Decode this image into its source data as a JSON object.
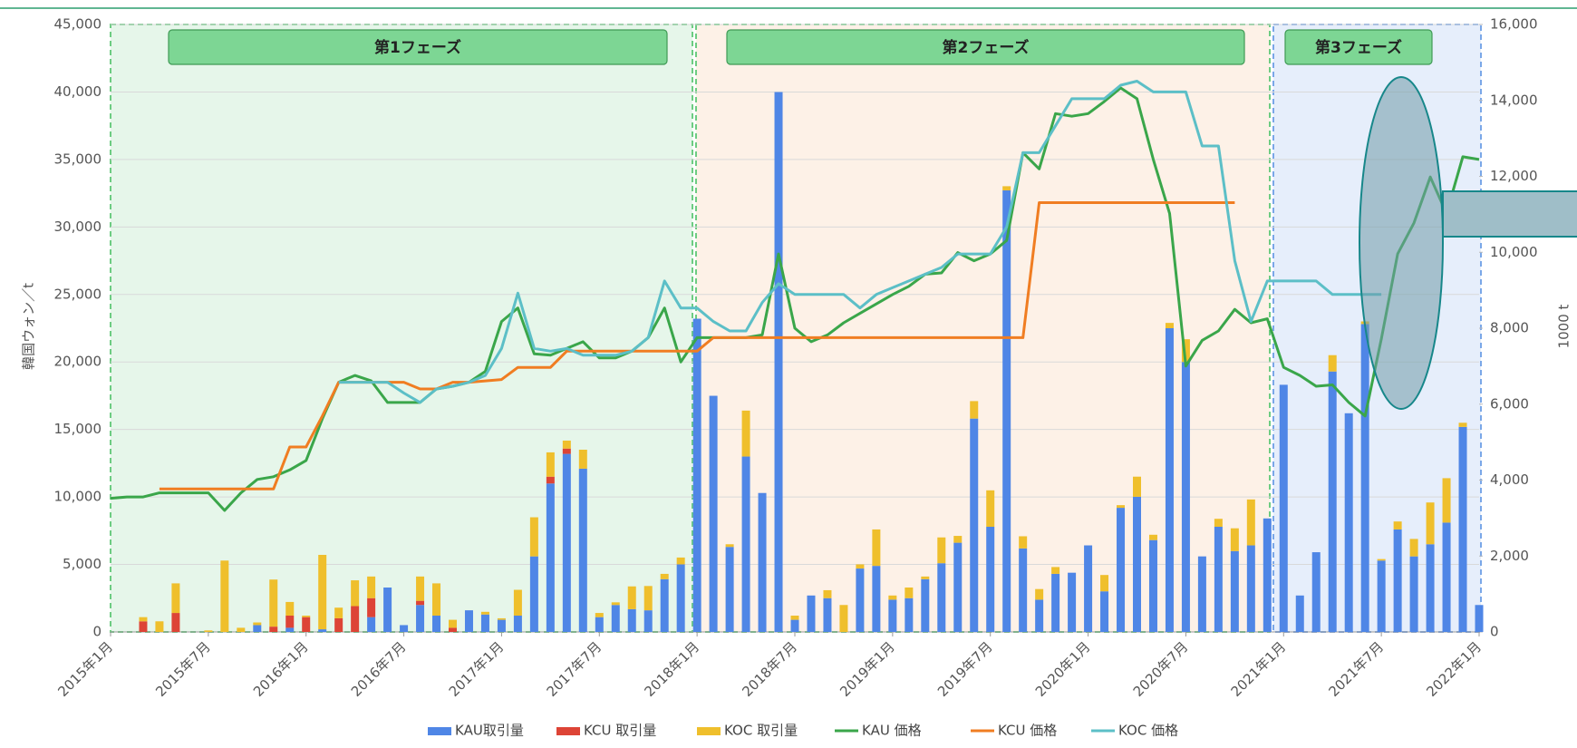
{
  "chart_data": {
    "type": "bar",
    "ylabel": "韓国ウォン／t",
    "y2label": "1000 t",
    "phases": [
      "第1フェーズ",
      "第2フェーズ",
      "第3フェーズ"
    ],
    "categories": [
      "2015年1月",
      null,
      null,
      null,
      null,
      null,
      "2015年7月",
      null,
      null,
      null,
      null,
      null,
      "2016年1月",
      null,
      null,
      null,
      null,
      null,
      "2016年7月",
      null,
      null,
      null,
      null,
      null,
      "2017年1月",
      null,
      null,
      null,
      null,
      null,
      "2017年7月",
      null,
      null,
      null,
      null,
      null,
      "2018年1月",
      null,
      null,
      null,
      null,
      null,
      "2018年7月",
      null,
      null,
      null,
      null,
      null,
      "2019年1月",
      null,
      null,
      null,
      null,
      null,
      "2019年7月",
      null,
      null,
      null,
      null,
      null,
      "2020年1月",
      null,
      null,
      null,
      null,
      null,
      "2020年7月",
      null,
      null,
      null,
      null,
      null,
      "2021年1月",
      null,
      null,
      null,
      null,
      null,
      "2021年7月",
      null,
      null,
      null,
      null,
      null,
      "2022年1月"
    ],
    "ylim": [
      0,
      45000
    ],
    "yticks": [
      0,
      {
        "value": 5000,
        "label": "5,000"
      },
      {
        "value": 10000,
        "label": "10,000"
      },
      {
        "value": 15000,
        "label": "15,000"
      },
      {
        "value": 20000,
        "label": "20,000"
      },
      {
        "value": 25000,
        "label": "25,000"
      },
      {
        "value": 30000,
        "label": "30,000"
      },
      {
        "value": 35000,
        "label": "35,000"
      },
      {
        "value": 40000,
        "label": "40,000"
      },
      {
        "value": 45000,
        "label": "45,000"
      }
    ],
    "y2lim": [
      0,
      16000
    ],
    "y2ticks": [
      0,
      {
        "value": 2000,
        "label": "2,000"
      },
      {
        "value": 4000,
        "label": "4,000"
      },
      {
        "value": 6000,
        "label": "6,000"
      },
      {
        "value": 8000,
        "label": "8,000"
      },
      {
        "value": 10000,
        "label": "10,000"
      },
      {
        "value": 12000,
        "label": "12,000"
      },
      {
        "value": 14000,
        "label": "14,000"
      },
      {
        "value": 16000,
        "label": "16,000"
      }
    ],
    "grid": true,
    "legend": "bottom",
    "series": [
      {
        "name": "KAU取引量",
        "type": "bar",
        "axis": "y2",
        "color": "#4f86e6",
        "values": [
          0,
          0,
          0,
          0,
          0,
          0,
          0,
          0,
          0,
          180,
          0,
          110,
          0,
          70,
          0,
          0,
          390,
          1170,
          180,
          710,
          430,
          0,
          570,
          460,
          320,
          430,
          1990,
          3910,
          4690,
          4300,
          390,
          710,
          600,
          570,
          1390,
          1780,
          8250,
          6220,
          2240,
          4620,
          3660,
          14220,
          320,
          960,
          890,
          0,
          1670,
          1740,
          850,
          890,
          1390,
          1810,
          2350,
          5620,
          2770,
          11630,
          2200,
          850,
          1530,
          1560,
          2280,
          1070,
          3270,
          3560,
          2420,
          8000,
          7110,
          1990,
          2770,
          2130,
          2280,
          2990,
          6510,
          960,
          2100,
          6860,
          5760,
          8110,
          1880,
          2700,
          1990,
          2310,
          2880,
          5400,
          710
        ]
      },
      {
        "name": "KCU 取引量",
        "type": "bar",
        "axis": "y2",
        "color": "#dd4436",
        "values": [
          0,
          0,
          280,
          0,
          500,
          0,
          0,
          0,
          0,
          0,
          140,
          320,
          390,
          0,
          360,
          680,
          500,
          0,
          0,
          110,
          0,
          110,
          0,
          0,
          0,
          0,
          0,
          180,
          140,
          0,
          0,
          0,
          0,
          0,
          0,
          0,
          0,
          0,
          0,
          0,
          0,
          0,
          0,
          0,
          0,
          0,
          0,
          0,
          0,
          0,
          0,
          0,
          0,
          0,
          0,
          0,
          0,
          0,
          0,
          0,
          0,
          0,
          0,
          0,
          0,
          0,
          0,
          0,
          0,
          0,
          0,
          0,
          0,
          0,
          0,
          0,
          0,
          0,
          0,
          0,
          0,
          0,
          0,
          0,
          0
        ]
      },
      {
        "name": "KOC 取引量",
        "type": "bar",
        "axis": "y2",
        "color": "#efbf2c",
        "values": [
          0,
          0,
          110,
          280,
          780,
          0,
          40,
          1880,
          110,
          70,
          1240,
          360,
          40,
          1960,
          280,
          680,
          570,
          0,
          0,
          640,
          850,
          210,
          0,
          70,
          40,
          680,
          1030,
          640,
          210,
          500,
          110,
          70,
          600,
          640,
          140,
          180,
          0,
          0,
          70,
          1210,
          0,
          0,
          110,
          0,
          210,
          710,
          110,
          960,
          110,
          280,
          70,
          680,
          180,
          460,
          960,
          110,
          320,
          280,
          180,
          0,
          0,
          430,
          70,
          530,
          140,
          140,
          600,
          0,
          210,
          600,
          1210,
          0,
          0,
          0,
          0,
          430,
          0,
          70,
          40,
          210,
          460,
          1100,
          1170,
          110,
          0
        ]
      },
      {
        "name": "KAU 価格",
        "type": "line",
        "color": "#3aa64a",
        "values": [
          9900,
          10000,
          10000,
          10300,
          10300,
          10300,
          10300,
          9000,
          10300,
          11300,
          11500,
          12000,
          12700,
          15800,
          18500,
          19000,
          18600,
          17000,
          17000,
          17000,
          18000,
          18200,
          18500,
          19300,
          23000,
          24000,
          20600,
          20500,
          21000,
          21500,
          20300,
          20300,
          20800,
          21800,
          24000,
          20000,
          21800,
          21800,
          21800,
          21800,
          22000,
          28000,
          22500,
          21500,
          22000,
          22900,
          23600,
          24300,
          25000,
          25600,
          26500,
          26600,
          28100,
          27500,
          28000,
          29000,
          35500,
          34300,
          38400,
          38200,
          38400,
          39300,
          40300,
          39500,
          35000,
          31000,
          19700,
          21600,
          22300,
          23900,
          22900,
          23200,
          19600,
          19000,
          18200,
          18300,
          17000,
          16000,
          21700,
          28000,
          30300,
          33700,
          31000,
          35200,
          35000
        ]
      },
      {
        "name": "KCU 価格",
        "type": "line",
        "color": "#f07d22",
        "values": [
          null,
          null,
          null,
          10600,
          10600,
          10600,
          10600,
          10600,
          10600,
          10600,
          10600,
          13700,
          13700,
          16000,
          18500,
          18500,
          18500,
          18500,
          18500,
          18000,
          18000,
          18500,
          18500,
          18600,
          18700,
          19600,
          19600,
          19600,
          20800,
          20800,
          20800,
          20800,
          20800,
          20800,
          20800,
          20800,
          20800,
          21800,
          21800,
          21800,
          21800,
          21800,
          21800,
          21800,
          21800,
          21800,
          21800,
          21800,
          21800,
          21800,
          21800,
          21800,
          21800,
          21800,
          21800,
          21800,
          21800,
          31800,
          31800,
          31800,
          31800,
          31800,
          31800,
          31800,
          31800,
          31800,
          31800,
          31800,
          31800,
          31800,
          null,
          null,
          null,
          null,
          null,
          null,
          null,
          null,
          null,
          null,
          null,
          null,
          null,
          null,
          null
        ]
      },
      {
        "name": "KOC 価格",
        "type": "line",
        "color": "#5cbfc7",
        "values": [
          null,
          null,
          null,
          null,
          null,
          null,
          null,
          null,
          null,
          null,
          null,
          null,
          null,
          null,
          18500,
          18500,
          18500,
          18500,
          17700,
          17000,
          18000,
          18200,
          18500,
          19000,
          21000,
          25100,
          21000,
          20800,
          21000,
          20500,
          20500,
          20500,
          20800,
          21800,
          26000,
          24000,
          24000,
          23000,
          22300,
          22300,
          24400,
          25800,
          25000,
          25000,
          25000,
          25000,
          24000,
          25000,
          25500,
          26000,
          26500,
          27000,
          28000,
          28000,
          28000,
          30000,
          35500,
          35500,
          37500,
          39500,
          39500,
          39500,
          40500,
          40800,
          40000,
          40000,
          40000,
          36000,
          36000,
          27500,
          23000,
          26000,
          26000,
          26000,
          26000,
          25000,
          25000,
          25000,
          25000,
          null,
          null,
          null,
          null,
          null,
          null
        ]
      }
    ]
  }
}
